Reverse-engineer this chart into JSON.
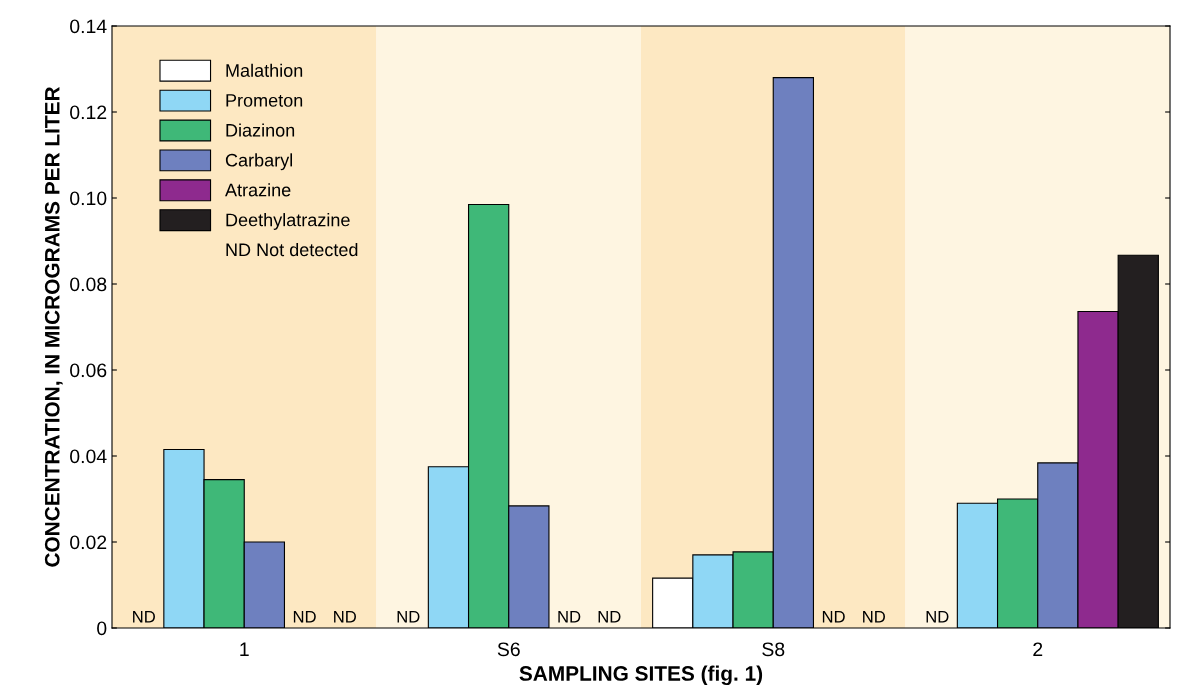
{
  "chart_data": {
    "type": "bar",
    "xlabel": "SAMPLING SITES (fig. 1)",
    "ylabel": "CONCENTRATION, IN MICROGRAMS PER LITER",
    "categories": [
      "1",
      "S6",
      "S8",
      "2"
    ],
    "series": [
      {
        "name": "Malathion",
        "color": "#ffffff",
        "values": [
          null,
          null,
          0.0116,
          null
        ],
        "value_labels": [
          "ND",
          "ND",
          null,
          "ND"
        ]
      },
      {
        "name": "Prometon",
        "color": "#8fd7f5",
        "values": [
          0.0415,
          0.0375,
          0.017,
          0.029
        ]
      },
      {
        "name": "Diazinon",
        "color": "#3fb878",
        "values": [
          0.0345,
          0.0985,
          0.0177,
          0.03
        ]
      },
      {
        "name": "Carbaryl",
        "color": "#6e80bf",
        "values": [
          0.02,
          0.0284,
          0.128,
          0.0384
        ]
      },
      {
        "name": "Atrazine",
        "color": "#8e2a8e",
        "values": [
          null,
          null,
          null,
          0.0736
        ],
        "value_labels": [
          "ND",
          "ND",
          "ND",
          null
        ]
      },
      {
        "name": "Deethylatrazine",
        "color": "#231f20",
        "values": [
          null,
          null,
          null,
          0.0867
        ],
        "value_labels": [
          "ND",
          "ND",
          "ND",
          null
        ]
      }
    ],
    "ylim": [
      0,
      0.14
    ],
    "yticks": [
      0,
      0.02,
      0.04,
      0.06,
      0.08,
      {
        "value": 0.1,
        "label": "0.10"
      },
      0.12,
      0.14
    ],
    "bands": [
      {
        "axis": "x",
        "from": "1",
        "to": "1",
        "color": "#fde8c2"
      },
      {
        "axis": "x",
        "from": "S6",
        "to": "S6",
        "color": "#fef5e1"
      },
      {
        "axis": "x",
        "from": "S8",
        "to": "S8",
        "color": "#fde8c2"
      },
      {
        "axis": "x",
        "from": "2",
        "to": "2",
        "color": "#fef5e1"
      }
    ],
    "annotations": [
      "ND Not detected"
    ],
    "legend": "top left",
    "grid": false
  }
}
